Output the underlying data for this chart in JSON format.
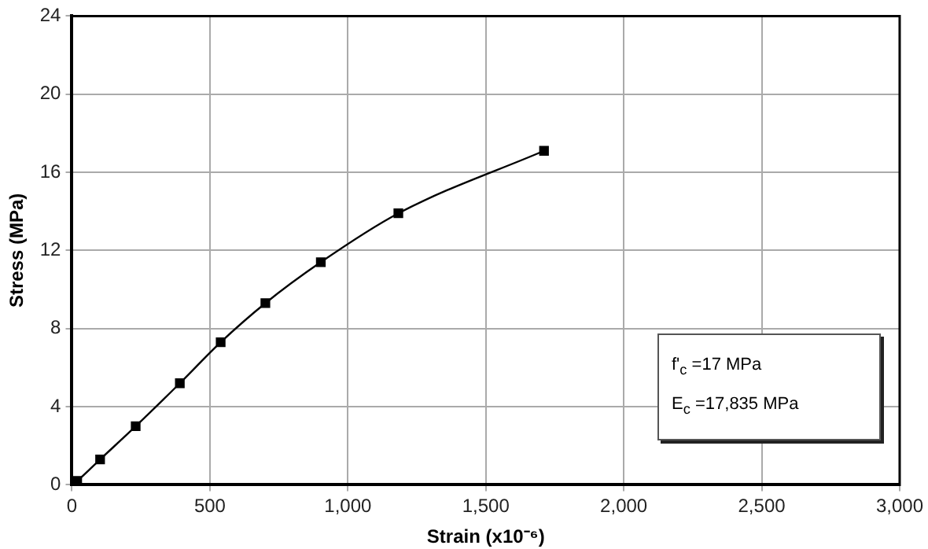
{
  "chart_data": {
    "type": "line",
    "xlabel": "Strain (x10⁻⁶)",
    "ylabel": "Stress (MPa)",
    "x": [
      0,
      19,
      102,
      231,
      391,
      539,
      701,
      902,
      1183,
      1711
    ],
    "series": [
      {
        "color": "#000000",
        "values": [
          0,
          0.2,
          1.3,
          3.0,
          5.2,
          7.3,
          9.3,
          11.4,
          13.9,
          17.1
        ]
      }
    ],
    "xlim": [
      0,
      3000
    ],
    "xticks": [
      {
        "value": 0,
        "label": "0"
      },
      {
        "value": 500,
        "label": "500"
      },
      {
        "value": 1000,
        "label": "1,000"
      },
      {
        "value": 1500,
        "label": "1,500"
      },
      {
        "value": 2000,
        "label": "2,000"
      },
      {
        "value": 2500,
        "label": "2,500"
      },
      {
        "value": 3000,
        "label": "3,000"
      }
    ],
    "ylim": [
      0,
      24
    ],
    "yticks": [
      0,
      4,
      8,
      12,
      16,
      20,
      24
    ],
    "annotations": [
      "f'$_{c}$ =17 MPa",
      "E$_{c}$ =17,835 MPa"
    ],
    "grid": true,
    "legend": false,
    "marker": "square",
    "line_style": "solid"
  }
}
